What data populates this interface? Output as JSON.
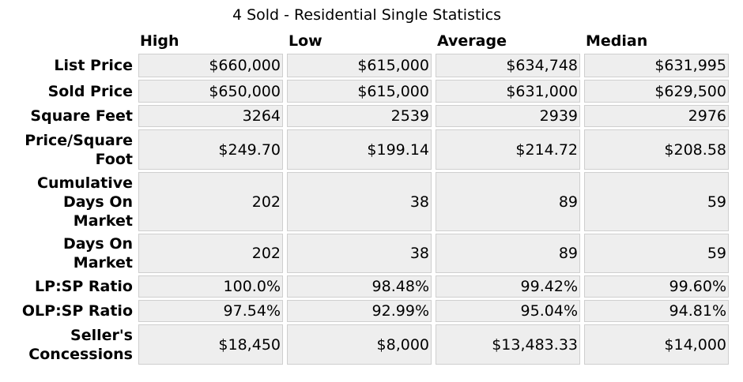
{
  "title": "4 Sold - Residential Single Statistics",
  "columns": [
    "High",
    "Low",
    "Average",
    "Median"
  ],
  "rows": [
    {
      "label": "List Price",
      "values": [
        "$660,000",
        "$615,000",
        "$634,748",
        "$631,995"
      ]
    },
    {
      "label": "Sold Price",
      "values": [
        "$650,000",
        "$615,000",
        "$631,000",
        "$629,500"
      ]
    },
    {
      "label": "Square Feet",
      "values": [
        "3264",
        "2539",
        "2939",
        "2976"
      ]
    },
    {
      "label": "Price/Square Foot",
      "values": [
        "$249.70",
        "$199.14",
        "$214.72",
        "$208.58"
      ]
    },
    {
      "label": "Cumulative Days On Market",
      "values": [
        "202",
        "38",
        "89",
        "59"
      ]
    },
    {
      "label": "Days On Market",
      "values": [
        "202",
        "38",
        "89",
        "59"
      ]
    },
    {
      "label": "LP:SP Ratio",
      "values": [
        "100.0%",
        "98.48%",
        "99.42%",
        "99.60%"
      ]
    },
    {
      "label": "OLP:SP Ratio",
      "values": [
        "97.54%",
        "92.99%",
        "95.04%",
        "94.81%"
      ]
    },
    {
      "label": "Seller's Concessions",
      "values": [
        "$18,450",
        "$8,000",
        "$13,483.33",
        "$14,000"
      ]
    }
  ]
}
